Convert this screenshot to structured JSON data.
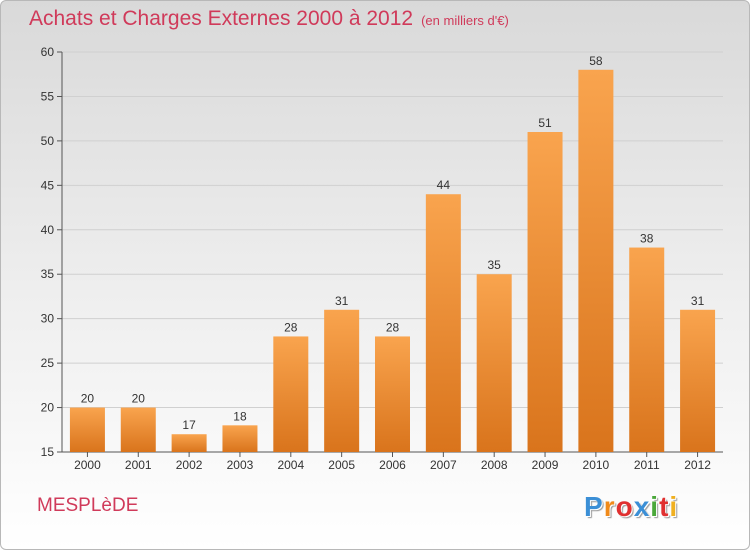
{
  "header": {
    "title": "Achats et Charges Externes 2000 à 2012",
    "unit": "(en milliers d'€)"
  },
  "footer": {
    "commune": "MESPLèDE",
    "logo_letters": [
      {
        "ch": "P",
        "color": "#3b8fd6"
      },
      {
        "ch": "r",
        "color": "#f08a1a"
      },
      {
        "ch": "o",
        "color": "#e03030"
      },
      {
        "ch": "x",
        "color": "#3b8fd6"
      },
      {
        "ch": "i",
        "color": "#4aa83a"
      },
      {
        "ch": "t",
        "color": "#e03030"
      },
      {
        "ch": "i",
        "color": "#f0b020"
      }
    ]
  },
  "colors": {
    "bar_light": "#f9a44e",
    "bar_dark": "#d9741c",
    "grid": "#d0d0d0",
    "axis": "#555555",
    "title": "#d03a5a"
  },
  "chart_data": {
    "type": "bar",
    "categories": [
      "2000",
      "2001",
      "2002",
      "2003",
      "2004",
      "2005",
      "2006",
      "2007",
      "2008",
      "2009",
      "2010",
      "2011",
      "2012"
    ],
    "values": [
      20,
      20,
      17,
      18,
      28,
      31,
      28,
      44,
      35,
      51,
      58,
      38,
      31
    ],
    "ylim": [
      15,
      60
    ],
    "yticks": [
      15,
      20,
      25,
      30,
      35,
      40,
      45,
      50,
      55,
      60
    ],
    "grid": true,
    "legend": "none",
    "title": "Achats et Charges Externes 2000 à 2012",
    "xlabel": "",
    "ylabel": ""
  }
}
